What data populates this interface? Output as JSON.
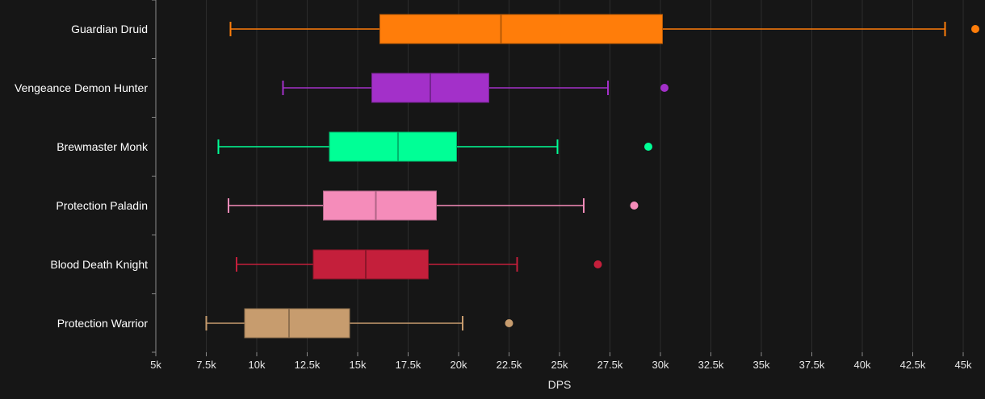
{
  "chart_data": {
    "type": "box",
    "orientation": "horizontal",
    "xlabel": "DPS",
    "xlim": [
      5000,
      45000
    ],
    "grid": true,
    "xticks": [
      {
        "value": 5000,
        "label": "5k"
      },
      {
        "value": 7500,
        "label": "7.5k"
      },
      {
        "value": 10000,
        "label": "10k"
      },
      {
        "value": 12500,
        "label": "12.5k"
      },
      {
        "value": 15000,
        "label": "15k"
      },
      {
        "value": 17500,
        "label": "17.5k"
      },
      {
        "value": 20000,
        "label": "20k"
      },
      {
        "value": 22500,
        "label": "22.5k"
      },
      {
        "value": 25000,
        "label": "25k"
      },
      {
        "value": 27500,
        "label": "27.5k"
      },
      {
        "value": 30000,
        "label": "30k"
      },
      {
        "value": 32500,
        "label": "32.5k"
      },
      {
        "value": 35000,
        "label": "35k"
      },
      {
        "value": 37500,
        "label": "37.5k"
      },
      {
        "value": 40000,
        "label": "40k"
      },
      {
        "value": 42500,
        "label": "42.5k"
      },
      {
        "value": 45000,
        "label": "45k"
      }
    ],
    "series": [
      {
        "category": "Guardian Druid",
        "color": "#ff7d0a",
        "whisker_low": 8700,
        "q1": 16100,
        "median": 22100,
        "q3": 30100,
        "whisker_high": 44100,
        "outliers": [
          45600
        ]
      },
      {
        "category": "Vengeance Demon Hunter",
        "color": "#a330c9",
        "whisker_low": 11300,
        "q1": 15700,
        "median": 18600,
        "q3": 21500,
        "whisker_high": 27400,
        "outliers": [
          30200
        ]
      },
      {
        "category": "Brewmaster Monk",
        "color": "#00ff96",
        "whisker_low": 8100,
        "q1": 13600,
        "median": 17000,
        "q3": 19900,
        "whisker_high": 24900,
        "outliers": [
          29400
        ]
      },
      {
        "category": "Protection Paladin",
        "color": "#f58cba",
        "whisker_low": 8600,
        "q1": 13300,
        "median": 15900,
        "q3": 18900,
        "whisker_high": 26200,
        "outliers": [
          28700
        ]
      },
      {
        "category": "Blood Death Knight",
        "color": "#c41f3b",
        "whisker_low": 9000,
        "q1": 12800,
        "median": 15400,
        "q3": 18500,
        "whisker_high": 22900,
        "outliers": [
          26900
        ]
      },
      {
        "category": "Protection Warrior",
        "color": "#c79c6e",
        "whisker_low": 7500,
        "q1": 9400,
        "median": 11600,
        "q3": 14600,
        "whisker_high": 20200,
        "outliers": [
          22500
        ]
      }
    ]
  }
}
